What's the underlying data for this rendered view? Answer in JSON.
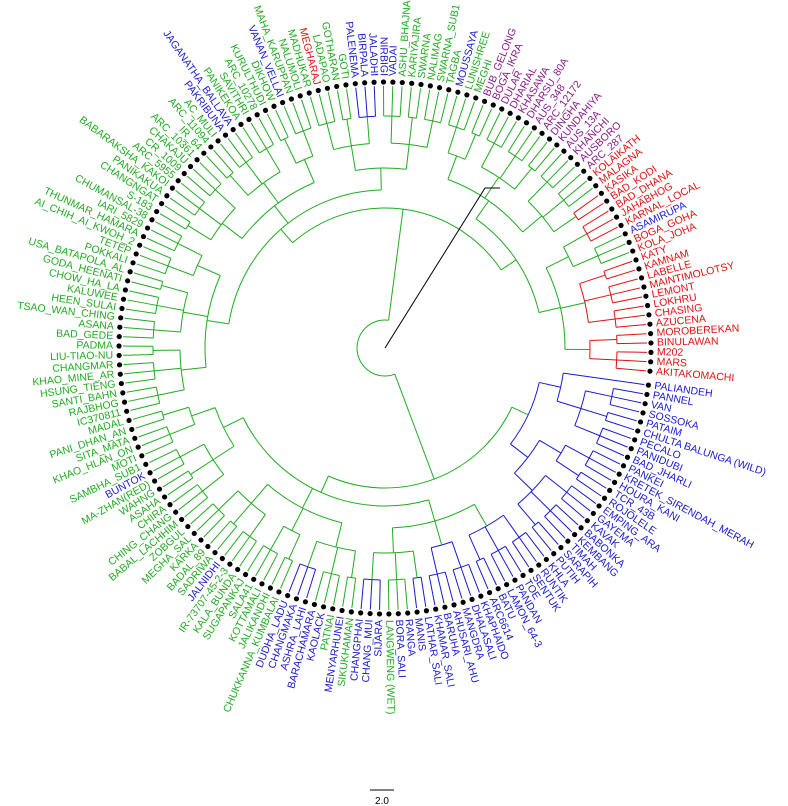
{
  "colors": {
    "green": "#22aa22",
    "blue": "#1a1acc",
    "red": "#dd1111",
    "purple": "#8a1a8a",
    "black": "#000000"
  },
  "scale_label": "2.0",
  "tips": [
    {
      "label": "AKITAKOMACHI",
      "c": "red"
    },
    {
      "label": "MARS",
      "c": "red"
    },
    {
      "label": "M202",
      "c": "red"
    },
    {
      "label": "BINULAWAN",
      "c": "red"
    },
    {
      "label": "MOROBEREKAN",
      "c": "red"
    },
    {
      "label": "AZUCENA",
      "c": "red"
    },
    {
      "label": "CHASING",
      "c": "red"
    },
    {
      "label": "LOKHRU",
      "c": "red"
    },
    {
      "label": "LEMONT",
      "c": "red"
    },
    {
      "label": "MAINTIMOLOTSY",
      "c": "red"
    },
    {
      "label": "LABELLE",
      "c": "red"
    },
    {
      "label": "KAMNAM",
      "c": "red"
    },
    {
      "label": "KATY",
      "c": "red"
    },
    {
      "label": "KOLA_JOHA",
      "c": "red"
    },
    {
      "label": "BOGA_GOHA",
      "c": "red"
    },
    {
      "label": "ASAMIRUPA",
      "c": "blue"
    },
    {
      "label": "KARNAL_LOCAL",
      "c": "red"
    },
    {
      "label": "JAHABHOG",
      "c": "red"
    },
    {
      "label": "BAD_DHANA",
      "c": "red"
    },
    {
      "label": "BAD_KODI",
      "c": "red"
    },
    {
      "label": "KASIKA",
      "c": "red"
    },
    {
      "label": "MALAGNA",
      "c": "red"
    },
    {
      "label": "KOLAIKATH",
      "c": "red"
    },
    {
      "label": "ARC_287",
      "c": "purple"
    },
    {
      "label": "AUSBORO",
      "c": "purple"
    },
    {
      "label": "KHANCHI",
      "c": "purple"
    },
    {
      "label": "AUS_13A",
      "c": "purple"
    },
    {
      "label": "KUNDAHIYA",
      "c": "purple"
    },
    {
      "label": "DINGHA",
      "c": "purple"
    },
    {
      "label": "ARC_12172",
      "c": "purple"
    },
    {
      "label": "AUS_348",
      "c": "purple"
    },
    {
      "label": "DHARSU_80A",
      "c": "purple"
    },
    {
      "label": "KHASAWA",
      "c": "purple"
    },
    {
      "label": "DHARIAL",
      "c": "purple"
    },
    {
      "label": "DULAR",
      "c": "purple"
    },
    {
      "label": "BOGA_IKRA",
      "c": "purple"
    },
    {
      "label": "BUB_GELONG",
      "c": "purple"
    },
    {
      "label": "MEGHI",
      "c": "green"
    },
    {
      "label": "LUNISHREE",
      "c": "green"
    },
    {
      "label": "MOUSSAYA",
      "c": "blue"
    },
    {
      "label": "TAGBA",
      "c": "green"
    },
    {
      "label": "SWARNA_SUB1",
      "c": "green"
    },
    {
      "label": "NALIMAG",
      "c": "green"
    },
    {
      "label": "SWARNA",
      "c": "green"
    },
    {
      "label": "KARIYAJIRA",
      "c": "green"
    },
    {
      "label": "ASHU_BHAJNA",
      "c": "green"
    },
    {
      "label": "VADAI",
      "c": "blue"
    },
    {
      "label": "NIRBIGI",
      "c": "blue"
    },
    {
      "label": "JALADHI",
      "c": "blue"
    },
    {
      "label": "BIRPALA",
      "c": "blue"
    },
    {
      "label": "PALENEMA",
      "c": "blue"
    },
    {
      "label": "GOTI",
      "c": "green"
    },
    {
      "label": "GOTHARAN",
      "c": "green"
    },
    {
      "label": "LADAPAO",
      "c": "green"
    },
    {
      "label": "MEGHARAJ",
      "c": "red"
    },
    {
      "label": "MADHUKAR",
      "c": "green"
    },
    {
      "label": "NALUMOLI",
      "c": "green"
    },
    {
      "label": "MAHA_KARUPPAN",
      "c": "green"
    },
    {
      "label": "VANAN_VELLAI",
      "c": "blue"
    },
    {
      "label": "DIKHOW",
      "c": "green"
    },
    {
      "label": "KURULTHUDI",
      "c": "green"
    },
    {
      "label": "ARC_10278",
      "c": "green"
    },
    {
      "label": "SAVITHRI",
      "c": "green"
    },
    {
      "label": "PANIKEKOA",
      "c": "green"
    },
    {
      "label": "JAGANATHA_BALLAVA",
      "c": "blue"
    },
    {
      "label": "PAKRIBUNA",
      "c": "blue"
    },
    {
      "label": "AC_MULI",
      "c": "green"
    },
    {
      "label": "ARC_11094",
      "c": "green"
    },
    {
      "label": "IR_64",
      "c": "green"
    },
    {
      "label": "ARC_10361",
      "c": "green"
    },
    {
      "label": "CHAKAJU",
      "c": "green"
    },
    {
      "label": "CR_1009",
      "c": "green"
    },
    {
      "label": "ARC_5955",
      "c": "green"
    },
    {
      "label": "BABARAKSHA_KAKOI",
      "c": "green"
    },
    {
      "label": "PANIKAKUA",
      "c": "green"
    },
    {
      "label": "CHANGNGAT",
      "c": "green"
    },
    {
      "label": "S-183",
      "c": "green"
    },
    {
      "label": "CHUMANSAL-38",
      "c": "green"
    },
    {
      "label": "IARI_5829",
      "c": "green"
    },
    {
      "label": "THUNMAR_HAMARA",
      "c": "green"
    },
    {
      "label": "AI_CHIH_AI_KWOH_2",
      "c": "green"
    },
    {
      "label": "TETEP",
      "c": "green"
    },
    {
      "label": "POKKALI",
      "c": "green"
    },
    {
      "label": "USA_BATAPOLA_AL",
      "c": "green"
    },
    {
      "label": "GODA_HEENATI",
      "c": "green"
    },
    {
      "label": "CHOW_HA_LA",
      "c": "green"
    },
    {
      "label": "KALUWEE",
      "c": "green"
    },
    {
      "label": "HEEN_SULAI",
      "c": "green"
    },
    {
      "label": "TSAO_WAN_CHING",
      "c": "green"
    },
    {
      "label": "ASANA",
      "c": "green"
    },
    {
      "label": "BAD_GEDE",
      "c": "green"
    },
    {
      "label": "PADMA",
      "c": "green"
    },
    {
      "label": "LIU-TIAO-NU",
      "c": "green"
    },
    {
      "label": "CHANGMAR",
      "c": "green"
    },
    {
      "label": "KHAO_MINE_AR",
      "c": "green"
    },
    {
      "label": "HSUNG_TIENG",
      "c": "green"
    },
    {
      "label": "SANTI_BAHN",
      "c": "green"
    },
    {
      "label": "RAJBHOG",
      "c": "green"
    },
    {
      "label": "IC370811",
      "c": "green"
    },
    {
      "label": "MADAL",
      "c": "green"
    },
    {
      "label": "PANI_DHAN_AN",
      "c": "green"
    },
    {
      "label": "SITA_MATA",
      "c": "green"
    },
    {
      "label": "KHAO_HLAN_ON",
      "c": "green"
    },
    {
      "label": "MOTI",
      "c": "green"
    },
    {
      "label": "SAMBHA_SUB1",
      "c": "green"
    },
    {
      "label": "BUNTOK",
      "c": "blue"
    },
    {
      "label": "MA-ZHAN(RED)",
      "c": "green"
    },
    {
      "label": "WAHNG",
      "c": "green"
    },
    {
      "label": "ASAHA",
      "c": "green"
    },
    {
      "label": "CHIRA",
      "c": "green"
    },
    {
      "label": "CHING_CHANG",
      "c": "green"
    },
    {
      "label": "BABAL_LACHHIM",
      "c": "green"
    },
    {
      "label": "ZOBGUL",
      "c": "green"
    },
    {
      "label": "MEGHA_SAL",
      "c": "green"
    },
    {
      "label": "KARKA",
      "c": "green"
    },
    {
      "label": "BADAL_89",
      "c": "green"
    },
    {
      "label": "SADRIWA",
      "c": "green"
    },
    {
      "label": "JALNIDHI",
      "c": "blue"
    },
    {
      "label": "IR-73707-45-2-3",
      "c": "green"
    },
    {
      "label": "KALA_BUNDA",
      "c": "green"
    },
    {
      "label": "SUGAPANKAJ",
      "c": "green"
    },
    {
      "label": "SALA41",
      "c": "green"
    },
    {
      "label": "KOTTAMALI",
      "c": "green"
    },
    {
      "label": "JALIKANDHI",
      "c": "green"
    },
    {
      "label": "CHUKKANNA_KUMBALAI",
      "c": "green"
    },
    {
      "label": "DUDHA_LADU",
      "c": "blue"
    },
    {
      "label": "CHANGMAKA",
      "c": "blue"
    },
    {
      "label": "ASHRA_LAHI",
      "c": "blue"
    },
    {
      "label": "BARACHAMARA",
      "c": "blue"
    },
    {
      "label": "KAOLACK",
      "c": "blue"
    },
    {
      "label": "PATNAI",
      "c": "green"
    },
    {
      "label": "MENYARHUNEI",
      "c": "blue"
    },
    {
      "label": "SIKUKHAMAN",
      "c": "green"
    },
    {
      "label": "CHANGPHAI",
      "c": "blue"
    },
    {
      "label": "CHANG_MUI",
      "c": "blue"
    },
    {
      "label": "SIJARA",
      "c": "blue"
    },
    {
      "label": "LANGWENG (WET)",
      "c": "green"
    },
    {
      "label": "BORA_SALI",
      "c": "blue"
    },
    {
      "label": "RANGA",
      "c": "blue"
    },
    {
      "label": "MANIS",
      "c": "blue"
    },
    {
      "label": "LATHAR_SALI",
      "c": "blue"
    },
    {
      "label": "KHAMAR_SALI",
      "c": "blue"
    },
    {
      "label": "BARUHA",
      "c": "blue"
    },
    {
      "label": "AHUSARI_AHU",
      "c": "blue"
    },
    {
      "label": "MANGDRA",
      "c": "blue"
    },
    {
      "label": "DHALASALI",
      "c": "blue"
    },
    {
      "label": "KHAPHAIDO",
      "c": "blue"
    },
    {
      "label": "ARC6614",
      "c": "blue"
    },
    {
      "label": "BATU",
      "c": "blue"
    },
    {
      "label": "LAMON_64-3",
      "c": "blue"
    },
    {
      "label": "PANDAN",
      "c": "blue"
    },
    {
      "label": "TOE",
      "c": "blue"
    },
    {
      "label": "SENTUK",
      "c": "blue"
    },
    {
      "label": "RUNTIK",
      "c": "blue"
    },
    {
      "label": "KHLA",
      "c": "blue"
    },
    {
      "label": "PUTIH",
      "c": "blue"
    },
    {
      "label": "SARAPIH",
      "c": "blue"
    },
    {
      "label": "TIMAH",
      "c": "blue"
    },
    {
      "label": "KEMBANG",
      "c": "blue"
    },
    {
      "label": "BABONKA",
      "c": "blue"
    },
    {
      "label": "KAVAK",
      "c": "blue"
    },
    {
      "label": "GAYEMA",
      "c": "blue"
    },
    {
      "label": "EMPING_ARA",
      "c": "blue"
    },
    {
      "label": "ROJOLELE",
      "c": "blue"
    },
    {
      "label": "TCR_43B",
      "c": "blue"
    },
    {
      "label": "HOURA_KANI",
      "c": "blue"
    },
    {
      "label": "KRETEK_SIRENDAH_MERAH",
      "c": "blue"
    },
    {
      "label": "PANKEI",
      "c": "blue"
    },
    {
      "label": "BAD_JHARLI",
      "c": "blue"
    },
    {
      "label": "PANIDUBI",
      "c": "blue"
    },
    {
      "label": "PECALO",
      "c": "blue"
    },
    {
      "label": "CHULTA BALUNGA (WILD)",
      "c": "blue"
    },
    {
      "label": "PATAIM",
      "c": "blue"
    },
    {
      "label": "SOSSOKA",
      "c": "blue"
    },
    {
      "label": "VAN",
      "c": "blue"
    },
    {
      "label": "PANNEL",
      "c": "blue"
    },
    {
      "label": "PALIANDEH",
      "c": "blue"
    }
  ]
}
